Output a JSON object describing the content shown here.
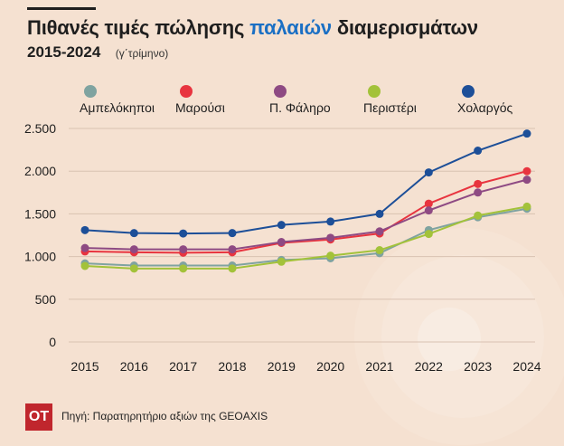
{
  "header": {
    "title_pre": "Πιθανές τιμές πώλησης ",
    "title_highlight": "παλαιών",
    "title_post": " διαμερισμάτων",
    "subtitle": "2015-2024",
    "period": "(γ΄τρίμηνο)",
    "highlight_color": "#1a6fc4"
  },
  "chart_data": {
    "type": "line",
    "x": [
      "2015",
      "2016",
      "2017",
      "2018",
      "2019",
      "2020",
      "2021",
      "2022",
      "2023",
      "2024"
    ],
    "ylim": [
      0,
      2500
    ],
    "yticks": [
      0,
      500,
      1000,
      1500,
      2000,
      2500
    ],
    "ytick_labels": [
      "0",
      "500",
      "1.000",
      "1.500",
      "2.000",
      "2.500"
    ],
    "grid": true,
    "legend_position": "top",
    "series": [
      {
        "name": "Αμπελόκηποι",
        "color": "#7fa3a0",
        "values": [
          920,
          895,
          895,
          895,
          960,
          980,
          1040,
          1310,
          1460,
          1560
        ]
      },
      {
        "name": "Μαρούσι",
        "color": "#e8343f",
        "values": [
          1060,
          1050,
          1045,
          1050,
          1160,
          1200,
          1270,
          1620,
          1850,
          2000
        ]
      },
      {
        "name": "Π. Φάληρο",
        "color": "#8e4a83",
        "values": [
          1100,
          1085,
          1085,
          1085,
          1170,
          1220,
          1295,
          1540,
          1750,
          1900
        ]
      },
      {
        "name": "Περιστέρι",
        "color": "#a3c23a",
        "values": [
          890,
          860,
          860,
          860,
          940,
          1010,
          1075,
          1265,
          1480,
          1585
        ]
      },
      {
        "name": "Χολαργός",
        "color": "#1d4f98",
        "values": [
          1310,
          1275,
          1270,
          1275,
          1370,
          1410,
          1500,
          1985,
          2240,
          2440
        ]
      }
    ]
  },
  "footer": {
    "logo": "OT",
    "logo_color": "#c0262d",
    "source": "Πηγή: Παρατηρητήριο αξιών της GEOAXIS"
  }
}
